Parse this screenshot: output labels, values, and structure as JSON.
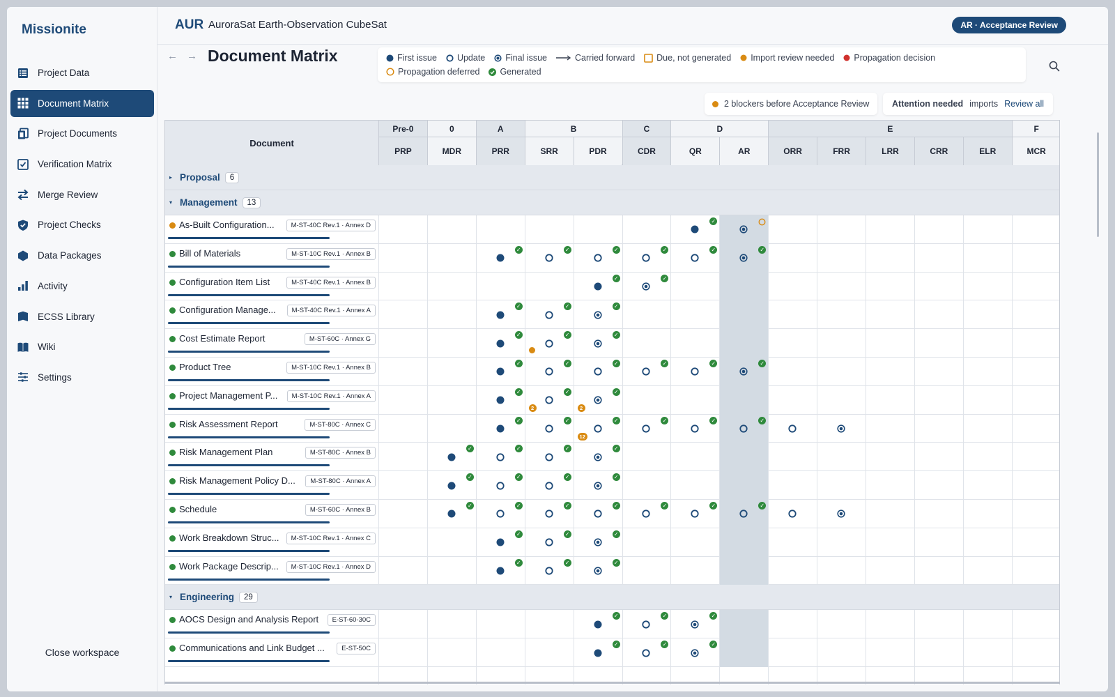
{
  "app": {
    "brand": "Missionite",
    "close_workspace": "Close workspace"
  },
  "sidebar": {
    "items": [
      {
        "label": "Project Data",
        "icon": "table-icon",
        "active": false
      },
      {
        "label": "Document Matrix",
        "icon": "grid-icon",
        "active": true
      },
      {
        "label": "Project Documents",
        "icon": "documents-icon",
        "active": false
      },
      {
        "label": "Verification Matrix",
        "icon": "checkbox-icon",
        "active": false
      },
      {
        "label": "Merge Review",
        "icon": "merge-arrows-icon",
        "active": false
      },
      {
        "label": "Project Checks",
        "icon": "shield-check-icon",
        "active": false
      },
      {
        "label": "Data Packages",
        "icon": "hexagon-icon",
        "active": false
      },
      {
        "label": "Activity",
        "icon": "bar-chart-icon",
        "active": false
      },
      {
        "label": "ECSS Library",
        "icon": "library-icon",
        "active": false
      },
      {
        "label": "Wiki",
        "icon": "book-icon",
        "active": false
      },
      {
        "label": "Settings",
        "icon": "sliders-icon",
        "active": false
      }
    ]
  },
  "header": {
    "project_code": "AUR",
    "project_name": "AuroraSat Earth-Observation CubeSat",
    "phase_pill": "AR · Acceptance Review"
  },
  "page": {
    "title": "Document Matrix",
    "back_arrow": "←",
    "forward_arrow": "→"
  },
  "legend": [
    {
      "label": "First issue",
      "kind": "first"
    },
    {
      "label": "Update",
      "kind": "update"
    },
    {
      "label": "Final issue",
      "kind": "final"
    },
    {
      "label": "Carried forward",
      "kind": "carried"
    },
    {
      "label": "Due, not generated",
      "kind": "due"
    },
    {
      "label": "Import review needed",
      "kind": "import"
    },
    {
      "label": "Propagation decision",
      "kind": "propdec"
    },
    {
      "label": "Propagation deferred",
      "kind": "propdef"
    },
    {
      "label": "Generated",
      "kind": "generated"
    }
  ],
  "blockers": {
    "text": "2 blockers before Acceptance Review"
  },
  "attention": {
    "title": "Attention needed",
    "imports": "imports",
    "link": "Review all"
  },
  "colors": {
    "primary": "#1e4a78",
    "generated": "#2f8a3c",
    "import": "#d98b13",
    "propagation_decision": "#d0312d",
    "highlight_column": "#d3dbe3"
  },
  "matrix": {
    "doc_header": "Document",
    "phases": [
      {
        "label": "Pre-0",
        "span": 1
      },
      {
        "label": "0",
        "span": 1
      },
      {
        "label": "A",
        "span": 1
      },
      {
        "label": "B",
        "span": 2
      },
      {
        "label": "C",
        "span": 1
      },
      {
        "label": "D",
        "span": 2
      },
      {
        "label": "E",
        "span": 5
      },
      {
        "label": "F",
        "span": 1
      }
    ],
    "reviews": [
      "PRP",
      "MDR",
      "PRR",
      "SRR",
      "PDR",
      "CDR",
      "QR",
      "AR",
      "ORR",
      "FRR",
      "LRR",
      "CRR",
      "ELR",
      "MCR"
    ],
    "active_review": "AR",
    "groups": [
      {
        "name": "Proposal",
        "count": "6",
        "expanded": false,
        "caret": "▸",
        "docs": []
      },
      {
        "name": "Management",
        "count": "13",
        "expanded": true,
        "caret": "▾",
        "docs": [
          {
            "name": "As-Built Configuration...",
            "ref": "M-ST-40C Rev.1 · Annex D",
            "status": "import",
            "progress": 1.0,
            "cells": [
              null,
              null,
              null,
              null,
              null,
              null,
              {
                "m": "first",
                "g": true
              },
              {
                "m": "final",
                "pd": true
              },
              null,
              null,
              null,
              null,
              null,
              null
            ]
          },
          {
            "name": "Bill of Materials",
            "ref": "M-ST-10C Rev.1 · Annex B",
            "status": "ok",
            "progress": 1.0,
            "cells": [
              null,
              null,
              {
                "m": "first",
                "g": true
              },
              {
                "m": "update",
                "g": true
              },
              {
                "m": "update",
                "g": true
              },
              {
                "m": "update",
                "g": true
              },
              {
                "m": "update",
                "g": true
              },
              {
                "m": "final",
                "g": true
              },
              null,
              null,
              null,
              null,
              null,
              null
            ]
          },
          {
            "name": "Configuration Item List",
            "ref": "M-ST-40C Rev.1 · Annex B",
            "status": "ok",
            "progress": 1.0,
            "cells": [
              null,
              null,
              null,
              null,
              {
                "m": "first",
                "g": true
              },
              {
                "m": "final",
                "g": true
              },
              null,
              null,
              null,
              null,
              null,
              null,
              null,
              null
            ]
          },
          {
            "name": "Configuration Manage...",
            "ref": "M-ST-40C Rev.1 · Annex A",
            "status": "ok",
            "progress": 1.0,
            "cells": [
              null,
              null,
              {
                "m": "first",
                "g": true
              },
              {
                "m": "update",
                "g": true
              },
              {
                "m": "final",
                "g": true
              },
              null,
              null,
              null,
              null,
              null,
              null,
              null,
              null,
              null
            ]
          },
          {
            "name": "Cost Estimate Report",
            "ref": "M-ST-60C · Annex G",
            "status": "ok",
            "progress": 1.0,
            "cells": [
              null,
              null,
              {
                "m": "first",
                "g": true
              },
              {
                "m": "update",
                "g": true,
                "imp": ""
              },
              {
                "m": "final",
                "g": true
              },
              null,
              null,
              null,
              null,
              null,
              null,
              null,
              null,
              null
            ]
          },
          {
            "name": "Product Tree",
            "ref": "M-ST-10C Rev.1 · Annex B",
            "status": "ok",
            "progress": 1.0,
            "cells": [
              null,
              null,
              {
                "m": "first",
                "g": true
              },
              {
                "m": "update",
                "g": true
              },
              {
                "m": "update",
                "g": true
              },
              {
                "m": "update",
                "g": true
              },
              {
                "m": "update",
                "g": true
              },
              {
                "m": "final",
                "g": true
              },
              null,
              null,
              null,
              null,
              null,
              null
            ]
          },
          {
            "name": "Project Management P...",
            "ref": "M-ST-10C Rev.1 · Annex A",
            "status": "ok",
            "progress": 1.0,
            "cells": [
              null,
              null,
              {
                "m": "first",
                "g": true
              },
              {
                "m": "update",
                "g": true,
                "imp": "2"
              },
              {
                "m": "final",
                "g": true,
                "imp": "2"
              },
              null,
              null,
              null,
              null,
              null,
              null,
              null,
              null,
              null
            ]
          },
          {
            "name": "Risk Assessment Report",
            "ref": "M-ST-80C · Annex C",
            "status": "ok",
            "progress": 1.0,
            "cells": [
              null,
              null,
              {
                "m": "first",
                "g": true
              },
              {
                "m": "update",
                "g": true
              },
              {
                "m": "update",
                "g": true,
                "imp": "12"
              },
              {
                "m": "update",
                "g": true
              },
              {
                "m": "update",
                "g": true
              },
              {
                "m": "update",
                "g": true
              },
              {
                "m": "update"
              },
              {
                "m": "final"
              },
              null,
              null,
              null,
              null
            ]
          },
          {
            "name": "Risk Management Plan",
            "ref": "M-ST-80C · Annex B",
            "status": "ok",
            "progress": 1.0,
            "cells": [
              null,
              {
                "m": "first",
                "g": true
              },
              {
                "m": "update",
                "g": true
              },
              {
                "m": "update",
                "g": true
              },
              {
                "m": "final",
                "g": true
              },
              null,
              null,
              null,
              null,
              null,
              null,
              null,
              null,
              null
            ]
          },
          {
            "name": "Risk Management Policy D...",
            "ref": "M-ST-80C · Annex A",
            "status": "ok",
            "progress": 1.0,
            "cells": [
              null,
              {
                "m": "first",
                "g": true
              },
              {
                "m": "update",
                "g": true
              },
              {
                "m": "update",
                "g": true
              },
              {
                "m": "final",
                "g": true
              },
              null,
              null,
              null,
              null,
              null,
              null,
              null,
              null,
              null
            ]
          },
          {
            "name": "Schedule",
            "ref": "M-ST-60C · Annex B",
            "status": "ok",
            "progress": 1.0,
            "cells": [
              null,
              {
                "m": "first",
                "g": true
              },
              {
                "m": "update",
                "g": true
              },
              {
                "m": "update",
                "g": true
              },
              {
                "m": "update",
                "g": true
              },
              {
                "m": "update",
                "g": true
              },
              {
                "m": "update",
                "g": true
              },
              {
                "m": "update",
                "g": true
              },
              {
                "m": "update"
              },
              {
                "m": "final"
              },
              null,
              null,
              null,
              null
            ]
          },
          {
            "name": "Work Breakdown Struc...",
            "ref": "M-ST-10C Rev.1 · Annex C",
            "status": "ok",
            "progress": 1.0,
            "cells": [
              null,
              null,
              {
                "m": "first",
                "g": true
              },
              {
                "m": "update",
                "g": true
              },
              {
                "m": "final",
                "g": true
              },
              null,
              null,
              null,
              null,
              null,
              null,
              null,
              null,
              null
            ]
          },
          {
            "name": "Work Package Descrip...",
            "ref": "M-ST-10C Rev.1 · Annex D",
            "status": "ok",
            "progress": 1.0,
            "cells": [
              null,
              null,
              {
                "m": "first",
                "g": true
              },
              {
                "m": "update",
                "g": true
              },
              {
                "m": "final",
                "g": true
              },
              null,
              null,
              null,
              null,
              null,
              null,
              null,
              null,
              null
            ]
          }
        ]
      },
      {
        "name": "Engineering",
        "count": "29",
        "expanded": true,
        "caret": "▾",
        "docs": [
          {
            "name": "AOCS Design and Analysis Report",
            "ref": "E-ST-60-30C",
            "status": "ok",
            "progress": 1.0,
            "cells": [
              null,
              null,
              null,
              null,
              {
                "m": "first",
                "g": true
              },
              {
                "m": "update",
                "g": true
              },
              {
                "m": "final",
                "g": true
              },
              null,
              null,
              null,
              null,
              null,
              null,
              null
            ]
          },
          {
            "name": "Communications and Link Budget ...",
            "ref": "E-ST-50C",
            "status": "ok",
            "progress": 1.0,
            "cells": [
              null,
              null,
              null,
              null,
              {
                "m": "first",
                "g": true
              },
              {
                "m": "update",
                "g": true
              },
              {
                "m": "final",
                "g": true
              },
              null,
              null,
              null,
              null,
              null,
              null,
              null
            ]
          }
        ]
      }
    ]
  }
}
